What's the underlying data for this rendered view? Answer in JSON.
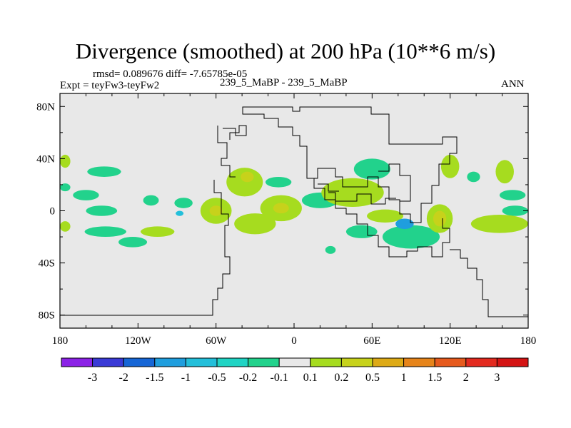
{
  "title": "Divergence (smoothed) at 200 hPa (10**6 m/s)",
  "stats_text": "rmsd= 0.089676 diff= -7.65785e-05",
  "experiment_text": "Expt = teyFw3-teyFw2",
  "case_text": "239_5_MaBP - 239_5_MaBP",
  "season_text": "ANN",
  "chart_data": {
    "type": "heatmap",
    "variable": "Divergence (smoothed)",
    "level": "200 hPa",
    "units": "10**6 m/s",
    "x_range": [
      -180,
      180
    ],
    "y_range": [
      -90,
      90
    ],
    "xtick_labels": [
      "180",
      "120W",
      "60W",
      "0",
      "60E",
      "120E",
      "180"
    ],
    "xtick_values": [
      -180,
      -120,
      -60,
      0,
      60,
      120,
      180
    ],
    "ytick_labels": [
      "80N",
      "40N",
      "0",
      "40S",
      "80S"
    ],
    "ytick_values": [
      80,
      40,
      0,
      -40,
      -80
    ],
    "background_color": "#e8e8e8",
    "colorbar": {
      "labels": [
        "-3",
        "-2",
        "-1.5",
        "-1",
        "-0.5",
        "-0.2",
        "-0.1",
        "0.1",
        "0.2",
        "0.5",
        "1",
        "1.5",
        "2",
        "3"
      ],
      "colors": [
        "#8b22e6",
        "#3a3ad6",
        "#1666d6",
        "#1f9ede",
        "#23bfda",
        "#20d4c4",
        "#22d28c",
        "#e8e8e8",
        "#a6dc1f",
        "#c7d21b",
        "#ddaa16",
        "#e6841a",
        "#e65a1d",
        "#e32a1f",
        "#d41414"
      ]
    },
    "blobs": [
      {
        "lon": -176,
        "lat": 38,
        "rx": 4,
        "ry": 5,
        "color": "#a6dc1f"
      },
      {
        "lon": -176,
        "lat": 18,
        "rx": 4,
        "ry": 3,
        "color": "#22d28c"
      },
      {
        "lon": -176,
        "lat": -12,
        "rx": 4,
        "ry": 4,
        "color": "#a6dc1f"
      },
      {
        "lon": -146,
        "lat": 30,
        "rx": 13,
        "ry": 4,
        "color": "#22d28c"
      },
      {
        "lon": -148,
        "lat": 0,
        "rx": 12,
        "ry": 4,
        "color": "#22d28c"
      },
      {
        "lon": -145,
        "lat": -16,
        "rx": 16,
        "ry": 4,
        "color": "#22d28c"
      },
      {
        "lon": -160,
        "lat": 12,
        "rx": 10,
        "ry": 4,
        "color": "#22d28c"
      },
      {
        "lon": -110,
        "lat": 8,
        "rx": 6,
        "ry": 4,
        "color": "#22d28c"
      },
      {
        "lon": -124,
        "lat": -24,
        "rx": 11,
        "ry": 4,
        "color": "#22d28c"
      },
      {
        "lon": -85,
        "lat": 6,
        "rx": 7,
        "ry": 4,
        "color": "#22d28c"
      },
      {
        "lon": -88,
        "lat": -2,
        "rx": 3,
        "ry": 2,
        "color": "#23bfda"
      },
      {
        "lon": -105,
        "lat": -16,
        "rx": 13,
        "ry": 4,
        "color": "#a6dc1f"
      },
      {
        "lon": -60,
        "lat": 0,
        "rx": 12,
        "ry": 10,
        "color": "#a6dc1f"
      },
      {
        "lon": -60,
        "lat": 0,
        "rx": 5,
        "ry": 4,
        "color": "#c7d21b"
      },
      {
        "lon": -38,
        "lat": 22,
        "rx": 14,
        "ry": 11,
        "color": "#a6dc1f"
      },
      {
        "lon": -36,
        "lat": 26,
        "rx": 5,
        "ry": 4,
        "color": "#c7d21b"
      },
      {
        "lon": -30,
        "lat": -10,
        "rx": 16,
        "ry": 8,
        "color": "#a6dc1f"
      },
      {
        "lon": -12,
        "lat": 22,
        "rx": 10,
        "ry": 4,
        "color": "#22d28c"
      },
      {
        "lon": -10,
        "lat": 2,
        "rx": 16,
        "ry": 10,
        "color": "#a6dc1f"
      },
      {
        "lon": -10,
        "lat": 2,
        "rx": 6,
        "ry": 4,
        "color": "#c7d21b"
      },
      {
        "lon": 20,
        "lat": 8,
        "rx": 14,
        "ry": 6,
        "color": "#22d28c"
      },
      {
        "lon": 45,
        "lat": 14,
        "rx": 24,
        "ry": 11,
        "color": "#a6dc1f"
      },
      {
        "lon": 60,
        "lat": 32,
        "rx": 14,
        "ry": 8,
        "color": "#22d28c"
      },
      {
        "lon": 70,
        "lat": -4,
        "rx": 14,
        "ry": 5,
        "color": "#a6dc1f"
      },
      {
        "lon": 52,
        "lat": -16,
        "rx": 12,
        "ry": 5,
        "color": "#22d28c"
      },
      {
        "lon": 90,
        "lat": -20,
        "rx": 22,
        "ry": 9,
        "color": "#22d28c"
      },
      {
        "lon": 85,
        "lat": -10,
        "rx": 7,
        "ry": 4,
        "color": "#1f9ede"
      },
      {
        "lon": 112,
        "lat": -6,
        "rx": 10,
        "ry": 11,
        "color": "#a6dc1f"
      },
      {
        "lon": 112,
        "lat": -6,
        "rx": 5,
        "ry": 6,
        "color": "#c7d21b"
      },
      {
        "lon": 120,
        "lat": 34,
        "rx": 7,
        "ry": 9,
        "color": "#a6dc1f"
      },
      {
        "lon": 138,
        "lat": 26,
        "rx": 5,
        "ry": 4,
        "color": "#22d28c"
      },
      {
        "lon": 162,
        "lat": 30,
        "rx": 7,
        "ry": 9,
        "color": "#a6dc1f"
      },
      {
        "lon": 168,
        "lat": 12,
        "rx": 10,
        "ry": 4,
        "color": "#22d28c"
      },
      {
        "lon": 170,
        "lat": 0,
        "rx": 10,
        "ry": 4,
        "color": "#22d28c"
      },
      {
        "lon": 158,
        "lat": -10,
        "rx": 22,
        "ry": 7,
        "color": "#a6dc1f"
      },
      {
        "lon": 28,
        "lat": -30,
        "rx": 4,
        "ry": 3,
        "color": "#22d28c"
      }
    ]
  }
}
